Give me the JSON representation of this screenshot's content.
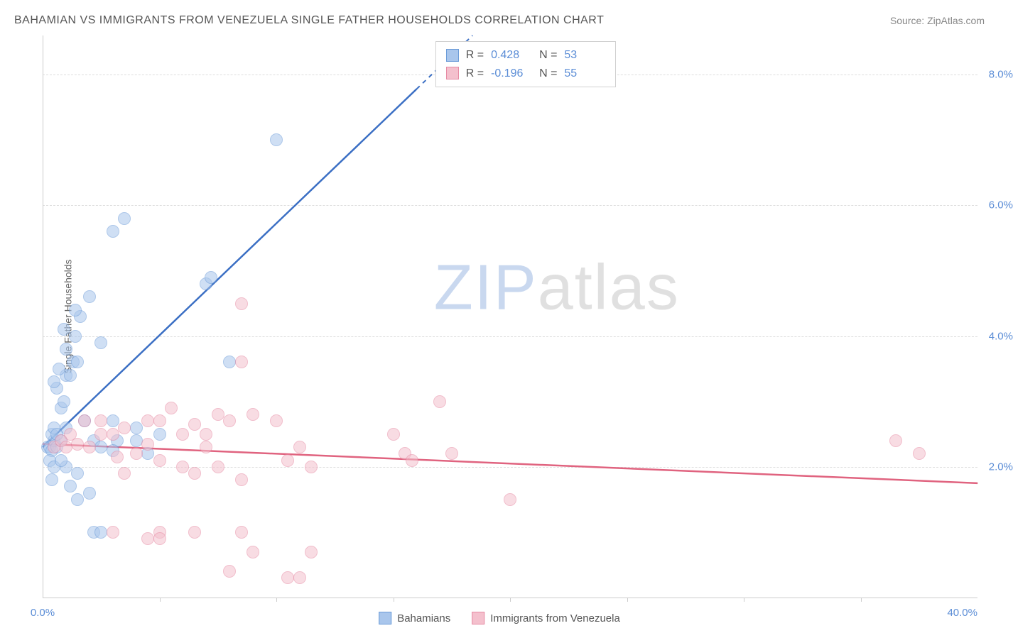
{
  "title": "BAHAMIAN VS IMMIGRANTS FROM VENEZUELA SINGLE FATHER HOUSEHOLDS CORRELATION CHART",
  "source_label": "Source: ZipAtlas.com",
  "y_axis_label": "Single Father Households",
  "watermark": {
    "part1": "ZIP",
    "part2": "atlas"
  },
  "chart": {
    "type": "scatter",
    "xlim": [
      0,
      40
    ],
    "ylim": [
      0,
      8.6
    ],
    "x_ticks": [
      0,
      40
    ],
    "x_tick_labels": [
      "0.0%",
      "40.0%"
    ],
    "x_minor_ticks": [
      5,
      10,
      15,
      20,
      25,
      30,
      35
    ],
    "y_ticks": [
      2,
      4,
      6,
      8
    ],
    "y_tick_labels": [
      "2.0%",
      "4.0%",
      "6.0%",
      "8.0%"
    ],
    "grid_color": "#dddddd",
    "background_color": "#ffffff",
    "point_radius": 9,
    "point_opacity": 0.55,
    "series": [
      {
        "name": "Bahamians",
        "color_fill": "#a9c6ec",
        "color_stroke": "#6b9bd8",
        "r_value": "0.428",
        "n_value": "53",
        "trend": {
          "x1": 0,
          "y1": 2.3,
          "x2": 40,
          "y2": 16.0,
          "dash_after_x": 16
        },
        "trend_color": "#3b6fc4",
        "points": [
          [
            0.2,
            2.3
          ],
          [
            0.3,
            2.3
          ],
          [
            0.4,
            2.25
          ],
          [
            0.5,
            2.4
          ],
          [
            0.6,
            2.3
          ],
          [
            0.4,
            2.5
          ],
          [
            0.8,
            2.4
          ],
          [
            0.5,
            2.6
          ],
          [
            0.8,
            2.9
          ],
          [
            0.6,
            3.2
          ],
          [
            0.9,
            3.0
          ],
          [
            0.5,
            3.3
          ],
          [
            1.0,
            3.4
          ],
          [
            0.7,
            3.5
          ],
          [
            1.2,
            3.4
          ],
          [
            1.3,
            3.6
          ],
          [
            1.5,
            3.6
          ],
          [
            1.0,
            3.8
          ],
          [
            1.4,
            4.0
          ],
          [
            0.9,
            4.1
          ],
          [
            1.6,
            4.3
          ],
          [
            1.4,
            4.4
          ],
          [
            2.5,
            3.9
          ],
          [
            2.0,
            4.6
          ],
          [
            3.0,
            5.6
          ],
          [
            3.5,
            5.8
          ],
          [
            1.8,
            2.7
          ],
          [
            2.2,
            2.4
          ],
          [
            2.5,
            2.3
          ],
          [
            3.0,
            2.7
          ],
          [
            4.0,
            2.4
          ],
          [
            4.0,
            2.6
          ],
          [
            4.5,
            2.2
          ],
          [
            8.0,
            3.6
          ],
          [
            10.0,
            7.0
          ],
          [
            7.0,
            4.8
          ],
          [
            7.2,
            4.9
          ],
          [
            1.0,
            2.0
          ],
          [
            1.5,
            1.9
          ],
          [
            1.5,
            1.5
          ],
          [
            1.2,
            1.7
          ],
          [
            2.0,
            1.6
          ],
          [
            2.2,
            1.0
          ],
          [
            2.5,
            1.0
          ],
          [
            3.2,
            2.4
          ],
          [
            3.0,
            2.25
          ],
          [
            5.0,
            2.5
          ],
          [
            1.0,
            2.6
          ],
          [
            0.3,
            2.1
          ],
          [
            0.5,
            2.0
          ],
          [
            0.4,
            1.8
          ],
          [
            0.8,
            2.1
          ],
          [
            0.6,
            2.5
          ]
        ]
      },
      {
        "name": "Immigrants from Venezuela",
        "color_fill": "#f4c0cd",
        "color_stroke": "#e68aa3",
        "r_value": "-0.196",
        "n_value": "55",
        "trend": {
          "x1": 0,
          "y1": 2.35,
          "x2": 40,
          "y2": 1.75,
          "dash_after_x": 40
        },
        "trend_color": "#e0637f",
        "points": [
          [
            0.5,
            2.3
          ],
          [
            0.8,
            2.4
          ],
          [
            1.0,
            2.3
          ],
          [
            1.5,
            2.35
          ],
          [
            1.2,
            2.5
          ],
          [
            1.8,
            2.7
          ],
          [
            2.5,
            2.7
          ],
          [
            3.0,
            2.5
          ],
          [
            3.5,
            2.6
          ],
          [
            4.5,
            2.7
          ],
          [
            5.0,
            2.7
          ],
          [
            5.5,
            2.9
          ],
          [
            6.5,
            2.65
          ],
          [
            7.0,
            2.5
          ],
          [
            7.5,
            2.8
          ],
          [
            8.0,
            2.7
          ],
          [
            9.0,
            2.8
          ],
          [
            10.0,
            2.7
          ],
          [
            10.5,
            2.1
          ],
          [
            11.0,
            2.3
          ],
          [
            11.5,
            2.0
          ],
          [
            15.0,
            2.5
          ],
          [
            15.5,
            2.2
          ],
          [
            15.8,
            2.1
          ],
          [
            17.5,
            2.2
          ],
          [
            20.0,
            1.5
          ],
          [
            8.5,
            4.5
          ],
          [
            4.0,
            2.2
          ],
          [
            5.0,
            2.1
          ],
          [
            6.0,
            2.0
          ],
          [
            6.5,
            1.9
          ],
          [
            7.5,
            2.0
          ],
          [
            8.5,
            1.8
          ],
          [
            3.5,
            1.9
          ],
          [
            5.0,
            1.0
          ],
          [
            3.0,
            1.0
          ],
          [
            6.5,
            1.0
          ],
          [
            8.5,
            1.0
          ],
          [
            4.5,
            0.9
          ],
          [
            5.0,
            0.9
          ],
          [
            8.0,
            0.4
          ],
          [
            10.5,
            0.3
          ],
          [
            11.5,
            0.7
          ],
          [
            11.0,
            0.3
          ],
          [
            9.0,
            0.7
          ],
          [
            8.5,
            3.6
          ],
          [
            17.0,
            3.0
          ],
          [
            36.5,
            2.4
          ],
          [
            37.5,
            2.2
          ],
          [
            4.5,
            2.35
          ],
          [
            6.0,
            2.5
          ],
          [
            2.0,
            2.3
          ],
          [
            2.5,
            2.5
          ],
          [
            3.2,
            2.15
          ],
          [
            7.0,
            2.3
          ]
        ]
      }
    ]
  },
  "stats_legend": {
    "r_label": "R =",
    "n_label": "N ="
  },
  "bottom_legend_labels": [
    "Bahamians",
    "Immigrants from Venezuela"
  ]
}
